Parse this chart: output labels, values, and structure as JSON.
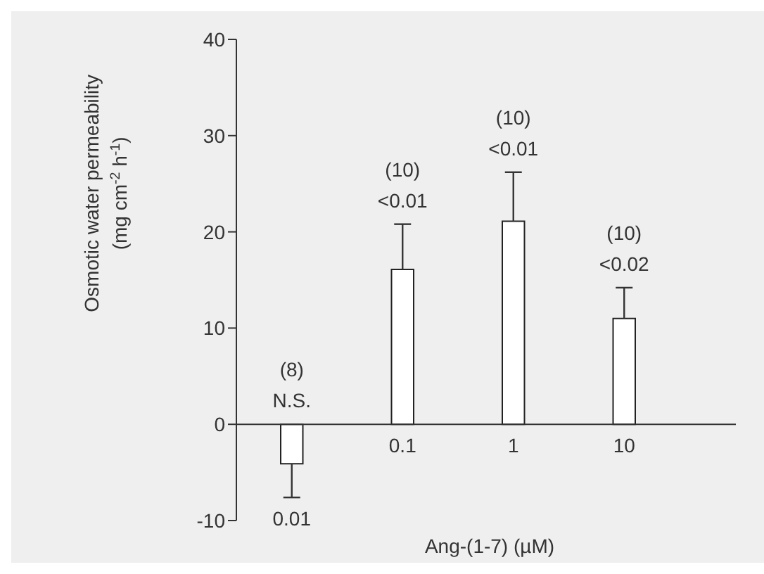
{
  "chart_data": {
    "type": "bar",
    "xlabel": "Ang-(1-7) (µM)",
    "ylabel": "Osmotic water permeability (mg cm$^{-2}$ h$^{-1}$)",
    "categories": [
      "0.01",
      "0.1",
      "1",
      "10"
    ],
    "values": [
      -4.1,
      16.1,
      21.1,
      11.0
    ],
    "errors": [
      [
        -7.6,
        -4.1
      ],
      [
        16.1,
        20.8
      ],
      [
        21.1,
        26.2
      ],
      [
        11.0,
        14.2
      ]
    ],
    "color": "#ffffff",
    "ylim": [
      -10,
      40
    ],
    "yticks": [
      -10,
      0,
      10,
      20,
      30,
      40
    ],
    "annotations": [
      "(8)",
      "N.S.",
      "(10)",
      "<0.01",
      "(10)",
      "<0.01",
      "(10)",
      "<0.02"
    ]
  }
}
